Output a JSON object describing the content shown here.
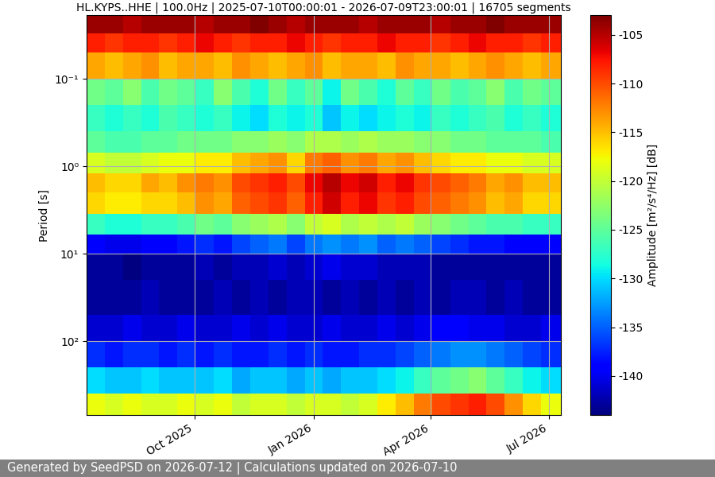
{
  "chart_data": {
    "type": "heatmap",
    "title": "HL.KYPS..HHE | 100.0Hz | 2025-07-10T00:00:01 - 2026-07-09T23:00:01 | 16705 segments",
    "y_label": "Period [s]",
    "footer": "Generated by SeedPSD on 2026-07-12 | Calculations updated on 2026-07-10",
    "log": "y",
    "grid": true,
    "xlim": [
      "2025-07-10",
      "2026-07-10"
    ],
    "xticks": [
      {
        "value": "2025-10-01",
        "label": "Oct 2025"
      },
      {
        "value": "2026-01-01",
        "label": "Jan 2026"
      },
      {
        "value": "2026-04-01",
        "label": "Apr 2026"
      },
      {
        "value": "2026-07-01",
        "label": "Jul 2026"
      }
    ],
    "ylim": [
      700,
      0.0187
    ],
    "yticks": [
      {
        "value": 0.1,
        "label": "10⁻¹"
      },
      {
        "value": 1,
        "label": "10⁰"
      },
      {
        "value": 10,
        "label": "10¹"
      },
      {
        "value": 100,
        "label": "10²"
      }
    ],
    "x_bins": [
      "2025-07-10",
      "2025-07-24",
      "2025-08-07",
      "2025-08-21",
      "2025-09-04",
      "2025-09-18",
      "2025-10-02",
      "2025-10-16",
      "2025-10-30",
      "2025-11-13",
      "2025-11-27",
      "2025-12-11",
      "2025-12-25",
      "2026-01-08",
      "2026-01-22",
      "2026-02-05",
      "2026-02-19",
      "2026-03-05",
      "2026-03-19",
      "2026-04-02",
      "2026-04-16",
      "2026-04-30",
      "2026-05-14",
      "2026-05-28",
      "2026-06-11",
      "2026-06-25",
      "2026-07-10"
    ],
    "y_bins": [
      0.0187,
      0.03,
      0.05,
      0.1,
      0.2,
      0.4,
      0.7,
      1.2,
      2,
      3.5,
      6,
      10,
      20,
      50,
      100,
      200,
      400,
      700
    ],
    "cells": [
      [
        -104,
        -104,
        -105,
        -104,
        -104,
        -104,
        -105,
        -104,
        -104,
        -103,
        -104,
        -105,
        -104,
        -104,
        -104,
        -105,
        -104,
        -104,
        -104,
        -105,
        -104,
        -104,
        -103,
        -104,
        -104,
        -104
      ],
      [
        -108,
        -109,
        -108,
        -108,
        -109,
        -108,
        -107,
        -108,
        -109,
        -108,
        -108,
        -107,
        -108,
        -109,
        -108,
        -108,
        -107,
        -108,
        -108,
        -109,
        -108,
        -107,
        -108,
        -108,
        -109,
        -108
      ],
      [
        -114,
        -115,
        -114,
        -113,
        -115,
        -114,
        -114,
        -115,
        -113,
        -114,
        -115,
        -114,
        -113,
        -115,
        -114,
        -114,
        -115,
        -113,
        -114,
        -114,
        -115,
        -114,
        -113,
        -114,
        -115,
        -114
      ],
      [
        -124,
        -125,
        -123,
        -126,
        -124,
        -125,
        -127,
        -123,
        -126,
        -128,
        -124,
        -127,
        -125,
        -129,
        -124,
        -126,
        -128,
        -125,
        -127,
        -124,
        -126,
        -125,
        -123,
        -126,
        -124,
        -125
      ],
      [
        -127,
        -128,
        -127,
        -128,
        -126,
        -127,
        -128,
        -127,
        -129,
        -130,
        -128,
        -129,
        -128,
        -131,
        -129,
        -130,
        -129,
        -128,
        -129,
        -127,
        -128,
        -127,
        -126,
        -128,
        -127,
        -128
      ],
      [
        -125,
        -126,
        -126,
        -125,
        -125,
        -124,
        -124,
        -124,
        -123,
        -123,
        -122,
        -123,
        -121,
        -121,
        -122,
        -121,
        -122,
        -122,
        -123,
        -123,
        -124,
        -124,
        -125,
        -125,
        -125,
        -126
      ],
      [
        -119,
        -120,
        -120,
        -119,
        -118,
        -118,
        -117,
        -117,
        -115,
        -114,
        -113,
        -116,
        -112,
        -111,
        -113,
        -112,
        -114,
        -113,
        -115,
        -116,
        -117,
        -117,
        -118,
        -118,
        -119,
        -119
      ],
      [
        -115,
        -116,
        -116,
        -114,
        -115,
        -113,
        -112,
        -113,
        -110,
        -109,
        -108,
        -110,
        -107,
        -105,
        -107,
        -106,
        -108,
        -107,
        -109,
        -110,
        -111,
        -112,
        -114,
        -113,
        -115,
        -115
      ],
      [
        -116,
        -117,
        -117,
        -116,
        -116,
        -115,
        -113,
        -114,
        -111,
        -110,
        -109,
        -111,
        -108,
        -106,
        -108,
        -107,
        -109,
        -108,
        -110,
        -111,
        -112,
        -113,
        -115,
        -114,
        -116,
        -116
      ],
      [
        -127,
        -128,
        -128,
        -127,
        -127,
        -126,
        -124,
        -125,
        -123,
        -122,
        -121,
        -123,
        -120,
        -119,
        -121,
        -120,
        -121,
        -120,
        -122,
        -123,
        -124,
        -125,
        -126,
        -126,
        -127,
        -127
      ],
      [
        -139,
        -140,
        -140,
        -139,
        -139,
        -138,
        -137,
        -138,
        -136,
        -135,
        -134,
        -136,
        -134,
        -133,
        -134,
        -133,
        -135,
        -134,
        -135,
        -136,
        -137,
        -138,
        -138,
        -139,
        -139,
        -139
      ],
      [
        -143,
        -143,
        -144,
        -143,
        -143,
        -143,
        -142,
        -143,
        -142,
        -142,
        -141,
        -142,
        -141,
        -140,
        -141,
        -141,
        -142,
        -142,
        -142,
        -143,
        -143,
        -143,
        -143,
        -143,
        -143,
        -143
      ],
      [
        -143,
        -143,
        -143,
        -142,
        -143,
        -143,
        -143,
        -142,
        -143,
        -142,
        -143,
        -142,
        -142,
        -143,
        -142,
        -143,
        -142,
        -143,
        -142,
        -143,
        -142,
        -142,
        -143,
        -142,
        -143,
        -143
      ],
      [
        -141,
        -141,
        -140,
        -141,
        -141,
        -140,
        -141,
        -141,
        -140,
        -141,
        -140,
        -141,
        -141,
        -140,
        -141,
        -141,
        -140,
        -141,
        -140,
        -139,
        -139,
        -140,
        -140,
        -141,
        -141,
        -140
      ],
      [
        -137,
        -138,
        -137,
        -137,
        -138,
        -137,
        -138,
        -137,
        -138,
        -138,
        -137,
        -138,
        -137,
        -138,
        -138,
        -137,
        -137,
        -136,
        -135,
        -134,
        -133,
        -133,
        -134,
        -135,
        -136,
        -137
      ],
      [
        -130,
        -131,
        -131,
        -130,
        -131,
        -131,
        -131,
        -130,
        -132,
        -131,
        -131,
        -132,
        -131,
        -132,
        -131,
        -131,
        -130,
        -129,
        -127,
        -125,
        -124,
        -123,
        -125,
        -127,
        -129,
        -130
      ],
      [
        -118,
        -119,
        -118,
        -119,
        -119,
        -118,
        -119,
        -118,
        -120,
        -119,
        -119,
        -120,
        -119,
        -119,
        -120,
        -119,
        -117,
        -115,
        -112,
        -110,
        -109,
        -108,
        -110,
        -113,
        -116,
        -118
      ]
    ],
    "colorbar": {
      "label": "Amplitude [m²/s⁴/Hz] [dB]",
      "lim": [
        -144,
        -103
      ],
      "ticks": [
        -140,
        -135,
        -130,
        -125,
        -120,
        -115,
        -110,
        -105
      ]
    }
  }
}
